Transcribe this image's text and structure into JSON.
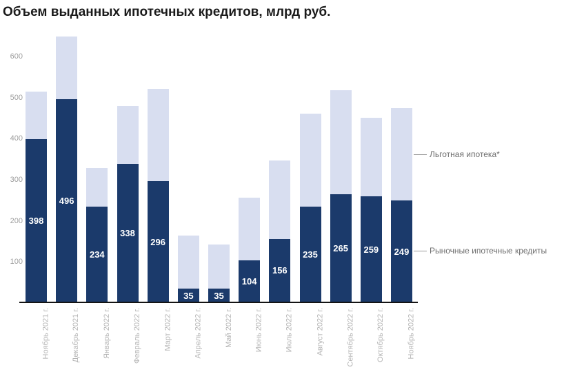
{
  "title": "Объем выданных ипотечных кредитов, млрд руб.",
  "annotations": {
    "subsidized_label": "Льготная ипотека*",
    "market_label": "Рыночные ипотечные кредиты"
  },
  "colors": {
    "market_bar": "#1b3a6b",
    "subsidized_bar": "#d8def0",
    "axis_line": "#141414",
    "title_text": "#1a1a1a",
    "y_tick_text": "#9e9e9e",
    "x_tick_text": "#b5b5b5",
    "annotation_text": "#6e6e6e",
    "value_label_text": "#ffffff",
    "background": "#ffffff"
  },
  "chart_data": {
    "type": "bar",
    "stacked": true,
    "title": "Объем выданных ипотечных кредитов, млрд руб.",
    "xlabel": "",
    "ylabel": "",
    "grid": false,
    "legend_position": "right-annotations",
    "y_ticks": [
      100,
      200,
      300,
      400,
      500,
      600
    ],
    "ylim": [
      0,
      660
    ],
    "categories": [
      "Ноябрь 2021 г.",
      "Декабрь 2021 г.",
      "Январь 2022 г.",
      "Февраль 2022 г.",
      "Март 2022 г.",
      "Апрель 2022 г.",
      "Май 2022 г.",
      "Июнь 2022 г.",
      "Июль 2022 г.",
      "Август 2022 г.",
      "Сентябрь 2022 г.",
      "Октябрь 2022 г.",
      "Ноябрь 2022 г."
    ],
    "series": [
      {
        "name": "Рыночные ипотечные кредиты",
        "color": "#1b3a6b",
        "data_labels": true,
        "values": [
          398,
          496,
          234,
          338,
          296,
          35,
          35,
          104,
          156,
          235,
          265,
          259,
          249
        ]
      },
      {
        "name": "Льготная ипотека*",
        "color": "#d8def0",
        "data_labels": false,
        "values": [
          116,
          152,
          94,
          141,
          225,
          129,
          107,
          152,
          191,
          226,
          253,
          192,
          225
        ]
      }
    ],
    "totals": [
      514,
      648,
      328,
      479,
      521,
      164,
      142,
      256,
      347,
      461,
      518,
      451,
      474
    ]
  }
}
